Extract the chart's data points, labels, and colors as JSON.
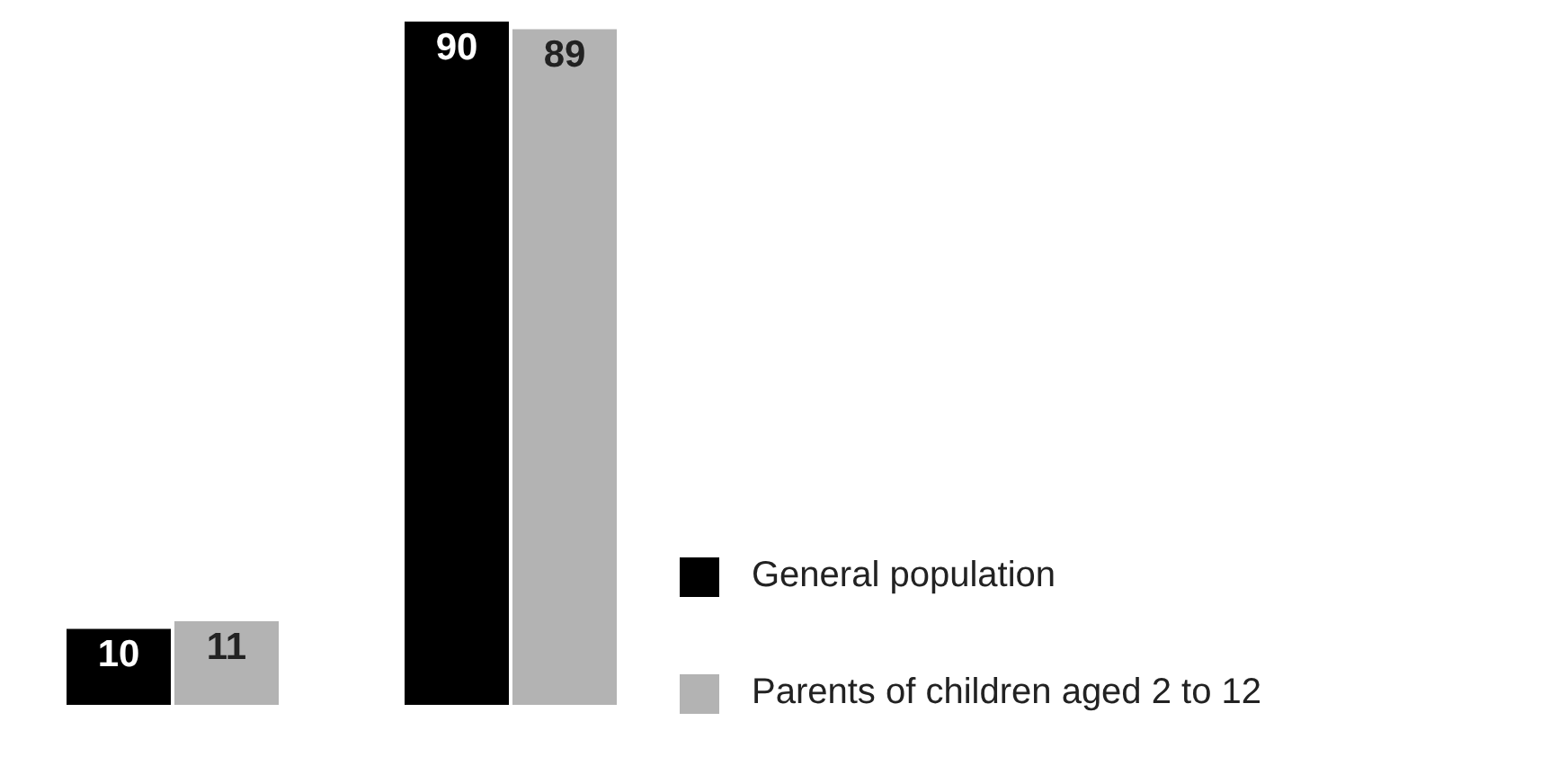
{
  "chart_data": {
    "type": "bar",
    "categories": [
      null,
      null
    ],
    "series": [
      {
        "name": "General population",
        "color": "#000000",
        "values": [
          10,
          90
        ]
      },
      {
        "name": "Parents of children aged 2 to 12",
        "color": "#b3b3b3",
        "values": [
          11,
          89
        ]
      }
    ],
    "data_labels": true,
    "legend": "bottom right"
  }
}
